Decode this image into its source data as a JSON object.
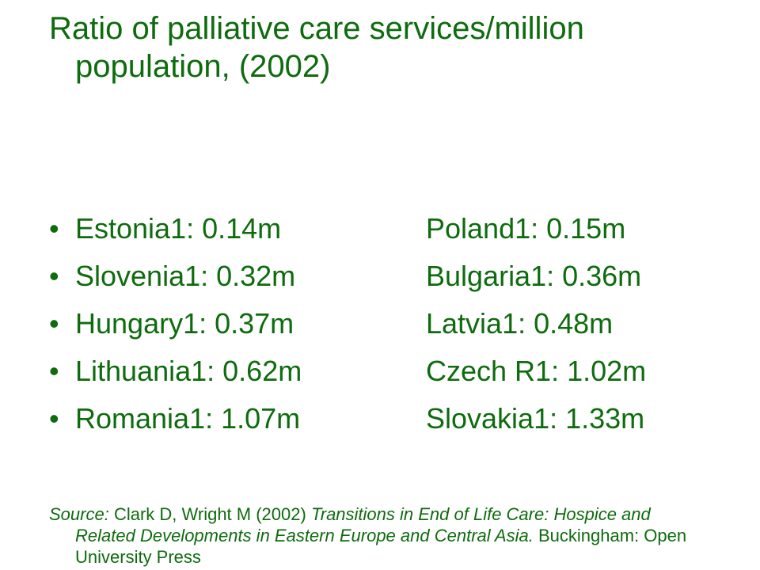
{
  "title": "Ratio of palliative care services/million population, (2002)",
  "items": [
    {
      "left": "Estonia1: 0.14m",
      "right": "Poland1: 0.15m"
    },
    {
      "left": "Slovenia1: 0.32m",
      "right": "Bulgaria1: 0.36m"
    },
    {
      "left": "Hungary1: 0.37m",
      "right": "Latvia1: 0.48m"
    },
    {
      "left": "Lithuania1: 0.62m",
      "right": "Czech R1: 1.02m"
    },
    {
      "left": "Romania1: 1.07m",
      "right": "Slovakia1: 1.33m"
    }
  ],
  "source": [
    "Source:",
    " Clark D, Wright M (2002) ",
    "Transitions in End of Life Care: Hospice and Related Developments in Eastern Europe and Central Asia.",
    " Buckingham: Open University Press"
  ]
}
